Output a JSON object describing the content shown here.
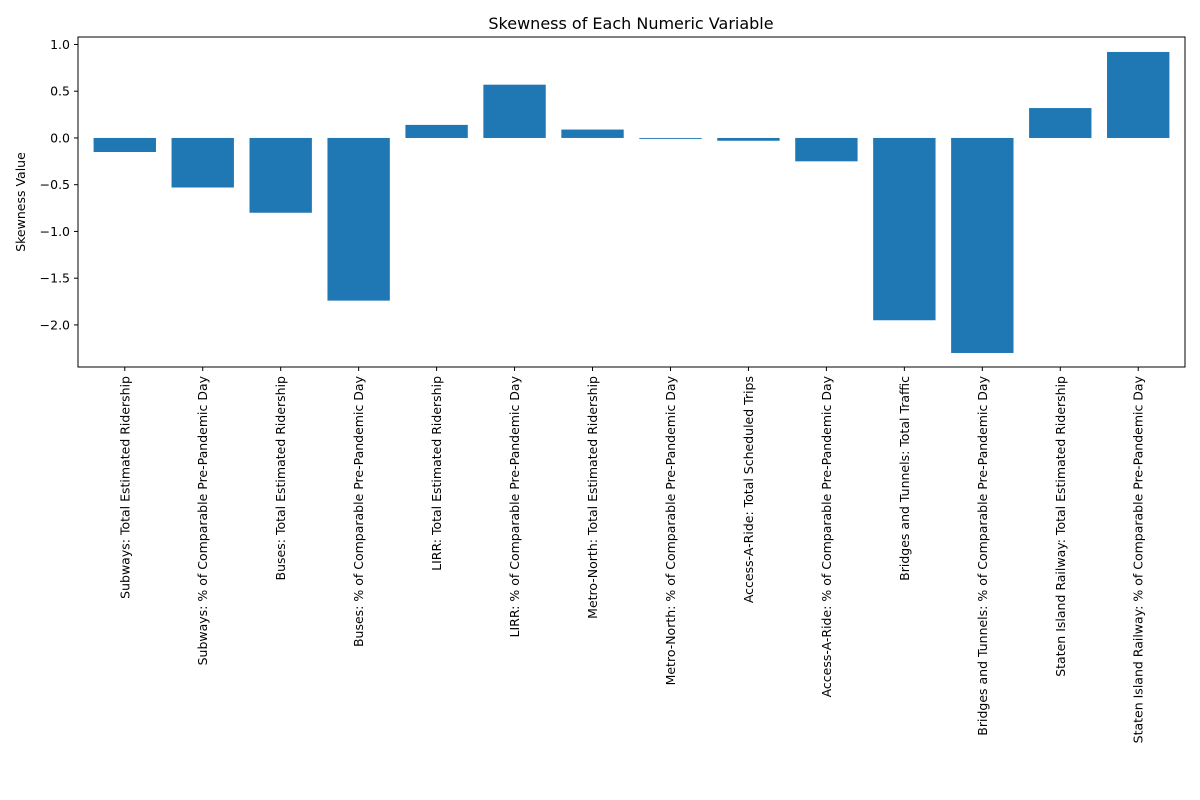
{
  "chart_data": {
    "type": "bar",
    "title": "Skewness of Each Numeric Variable",
    "xlabel": "",
    "ylabel": "Skewness Value",
    "bar_color": "#1f77b4",
    "ylim": [
      -2.45,
      1.08
    ],
    "yticks": [
      -2.0,
      -1.5,
      -1.0,
      -0.5,
      0.0,
      0.5,
      1.0
    ],
    "ytick_labels": [
      "−2.0",
      "−1.5",
      "−1.0",
      "−0.5",
      "0.0",
      "0.5",
      "1.0"
    ],
    "grid": false,
    "categories": [
      "Subways: Total Estimated Ridership",
      "Subways: % of Comparable Pre-Pandemic Day",
      "Buses: Total Estimated Ridership",
      "Buses: % of Comparable Pre-Pandemic Day",
      "LIRR: Total Estimated Ridership",
      "LIRR: % of Comparable Pre-Pandemic Day",
      "Metro-North: Total Estimated Ridership",
      "Metro-North: % of Comparable Pre-Pandemic Day",
      "Access-A-Ride: Total Scheduled Trips",
      "Access-A-Ride: % of Comparable Pre-Pandemic Day",
      "Bridges and Tunnels: Total Traffic",
      "Bridges and Tunnels: % of Comparable Pre-Pandemic Day",
      "Staten Island Railway: Total Estimated Ridership",
      "Staten Island Railway: % of Comparable Pre-Pandemic Day"
    ],
    "values": [
      -0.15,
      -0.53,
      -0.8,
      -1.74,
      0.14,
      0.57,
      0.09,
      -0.01,
      -0.03,
      -0.25,
      -1.95,
      -2.3,
      0.32,
      0.92
    ]
  }
}
